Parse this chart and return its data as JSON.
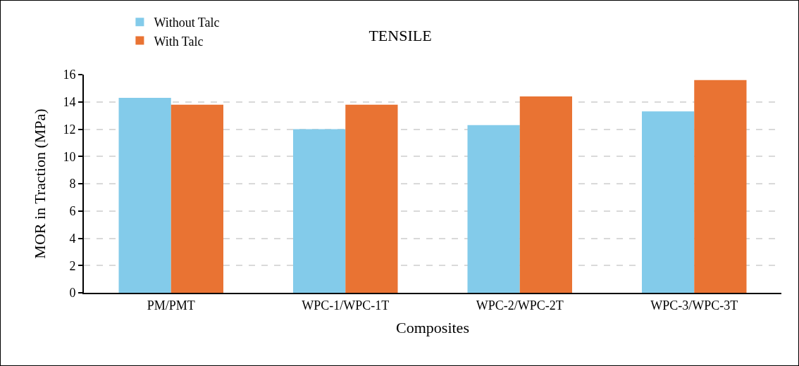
{
  "chart_data": {
    "type": "bar",
    "title": "TENSILE",
    "xlabel": "Composites",
    "ylabel": "MOR in Traction (MPa)",
    "categories": [
      "PM/PMT",
      "WPC-1/WPC-1T",
      "WPC-2/WPC-2T",
      "WPC-3/WPC-3T"
    ],
    "series": [
      {
        "name": "Without Talc",
        "color": "#83cbea",
        "values": [
          14.3,
          12.0,
          12.3,
          13.3
        ]
      },
      {
        "name": "With Talc",
        "color": "#e97333",
        "values": [
          13.8,
          13.8,
          14.4,
          15.6
        ]
      }
    ],
    "ylim": [
      0,
      16
    ],
    "yticks": [
      0,
      2,
      4,
      6,
      8,
      10,
      12,
      14,
      16
    ],
    "grid": "y",
    "legend": "top left"
  }
}
